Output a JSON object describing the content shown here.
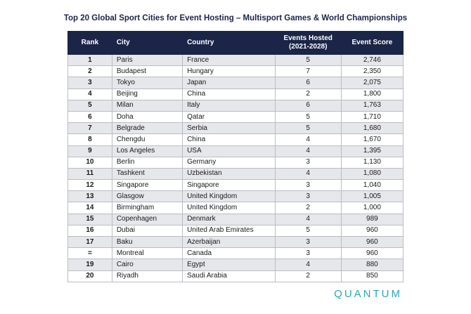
{
  "title": "Top 20 Global Sport Cities for Event Hosting – Multisport Games & World Championships",
  "headers": {
    "rank": "Rank",
    "city": "City",
    "country": "Country",
    "events_line1": "Events Hosted",
    "events_line2": "(2021-2028)",
    "score": "Event Score"
  },
  "rows": [
    {
      "rank": "1",
      "city": "Paris",
      "country": "France",
      "events": "5",
      "score": "2,746"
    },
    {
      "rank": "2",
      "city": "Budapest",
      "country": "Hungary",
      "events": "7",
      "score": "2,350"
    },
    {
      "rank": "3",
      "city": "Tokyo",
      "country": "Japan",
      "events": "6",
      "score": "2,075"
    },
    {
      "rank": "4",
      "city": "Beijing",
      "country": "China",
      "events": "2",
      "score": "1,800"
    },
    {
      "rank": "5",
      "city": "Milan",
      "country": "Italy",
      "events": "6",
      "score": "1,763"
    },
    {
      "rank": "6",
      "city": "Doha",
      "country": "Qatar",
      "events": "5",
      "score": "1,710"
    },
    {
      "rank": "7",
      "city": "Belgrade",
      "country": "Serbia",
      "events": "5",
      "score": "1,680"
    },
    {
      "rank": "8",
      "city": "Chengdu",
      "country": "China",
      "events": "4",
      "score": "1,670"
    },
    {
      "rank": "9",
      "city": "Los Angeles",
      "country": "USA",
      "events": "4",
      "score": "1,395"
    },
    {
      "rank": "10",
      "city": "Berlin",
      "country": "Germany",
      "events": "3",
      "score": "1,130"
    },
    {
      "rank": "11",
      "city": "Tashkent",
      "country": "Uzbekistan",
      "events": "4",
      "score": "1,080"
    },
    {
      "rank": "12",
      "city": "Singapore",
      "country": "Singapore",
      "events": "3",
      "score": "1,040"
    },
    {
      "rank": "13",
      "city": "Glasgow",
      "country": "United Kingdom",
      "events": "3",
      "score": "1,005"
    },
    {
      "rank": "14",
      "city": "Birmingham",
      "country": "United Kingdom",
      "events": "2",
      "score": "1,000"
    },
    {
      "rank": "15",
      "city": "Copenhagen",
      "country": "Denmark",
      "events": "4",
      "score": "989"
    },
    {
      "rank": "16",
      "city": "Dubai",
      "country": "United Arab Emirates",
      "events": "5",
      "score": "960"
    },
    {
      "rank": "17",
      "city": "Baku",
      "country": "Azerbaijan",
      "events": "3",
      "score": "960"
    },
    {
      "rank": "=",
      "city": "Montreal",
      "country": "Canada",
      "events": "3",
      "score": "960"
    },
    {
      "rank": "19",
      "city": "Cairo",
      "country": "Egypt",
      "events": "4",
      "score": "880"
    },
    {
      "rank": "20",
      "city": "Riyadh",
      "country": "Saudi Arabia",
      "events": "2",
      "score": "850"
    }
  ],
  "brand": "QUANTUM",
  "colors": {
    "header_bg": "#1b2547",
    "stripe": "#e6e7ea",
    "brand": "#2aa7b8"
  }
}
